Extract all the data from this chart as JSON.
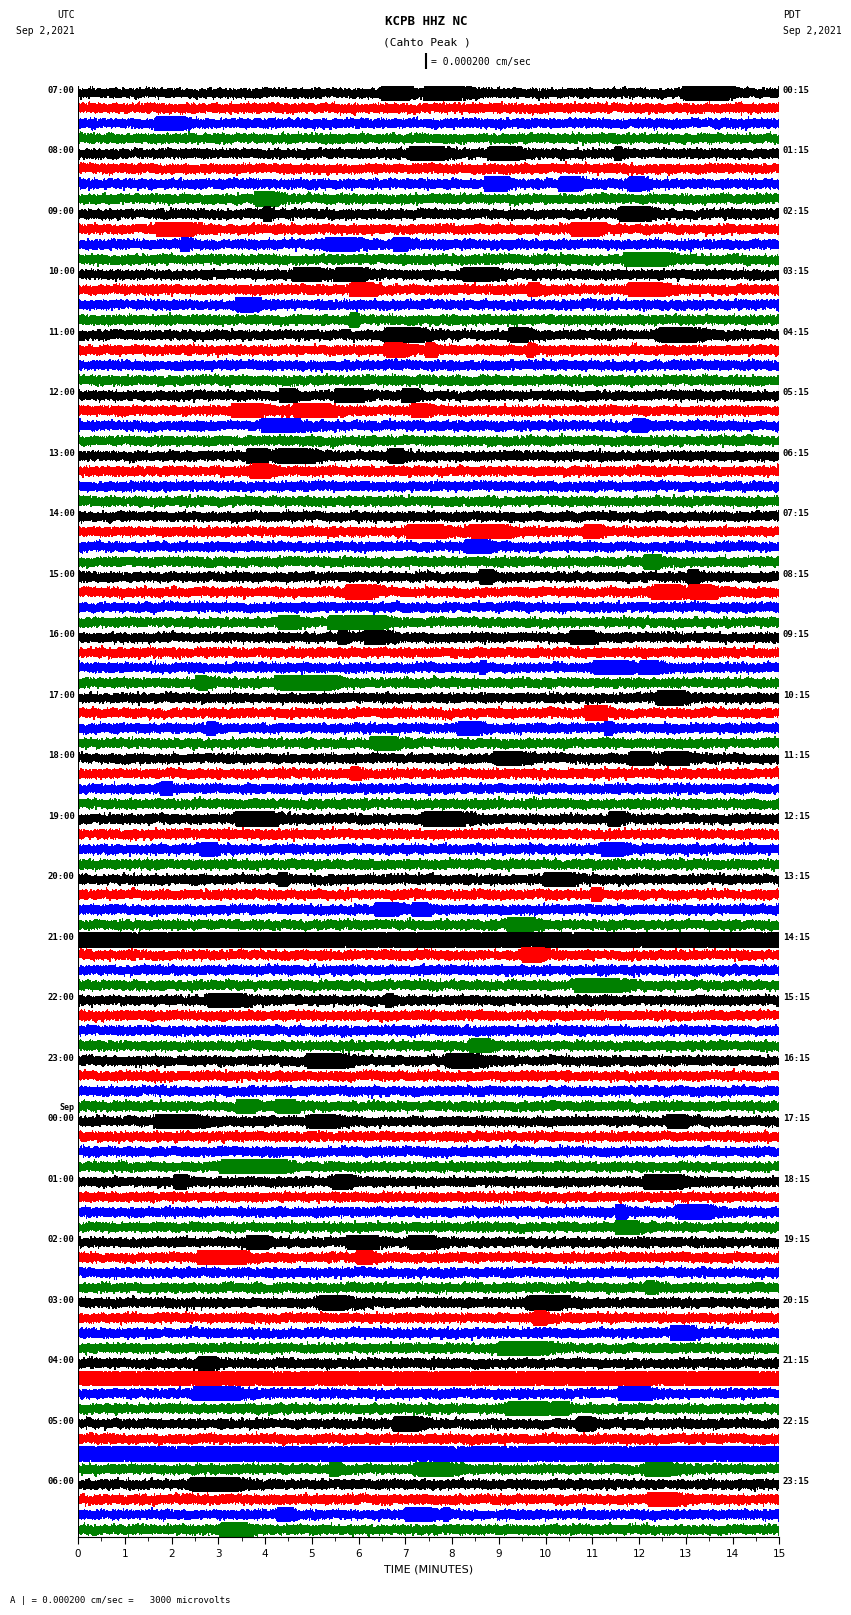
{
  "title": "KCPB HHZ NC",
  "subtitle": "(Cahto Peak )",
  "scale_label": "= 0.000200 cm/sec",
  "bottom_label": "A | = 0.000200 cm/sec =   3000 microvolts",
  "left_header": "UTC",
  "left_date": "Sep 2,2021",
  "right_header": "PDT",
  "right_date": "Sep 2,2021",
  "xlabel": "TIME (MINUTES)",
  "utc_times": [
    "07:00",
    "08:00",
    "09:00",
    "10:00",
    "11:00",
    "12:00",
    "13:00",
    "14:00",
    "15:00",
    "16:00",
    "17:00",
    "18:00",
    "19:00",
    "20:00",
    "21:00",
    "22:00",
    "23:00",
    "Sep\n00:00",
    "01:00",
    "02:00",
    "03:00",
    "04:00",
    "05:00",
    "06:00"
  ],
  "pdt_times": [
    "00:15",
    "01:15",
    "02:15",
    "03:15",
    "04:15",
    "05:15",
    "06:15",
    "07:15",
    "08:15",
    "09:15",
    "10:15",
    "11:15",
    "12:15",
    "13:15",
    "14:15",
    "15:15",
    "16:15",
    "17:15",
    "18:15",
    "19:15",
    "20:15",
    "21:15",
    "22:15",
    "23:15"
  ],
  "n_rows": 24,
  "traces_per_row": 4,
  "trace_colors": [
    "black",
    "red",
    "blue",
    "green"
  ],
  "bg_color": "white",
  "minutes": 15,
  "sample_rate": 100,
  "fig_width": 8.5,
  "fig_height": 16.13,
  "dpi": 100
}
